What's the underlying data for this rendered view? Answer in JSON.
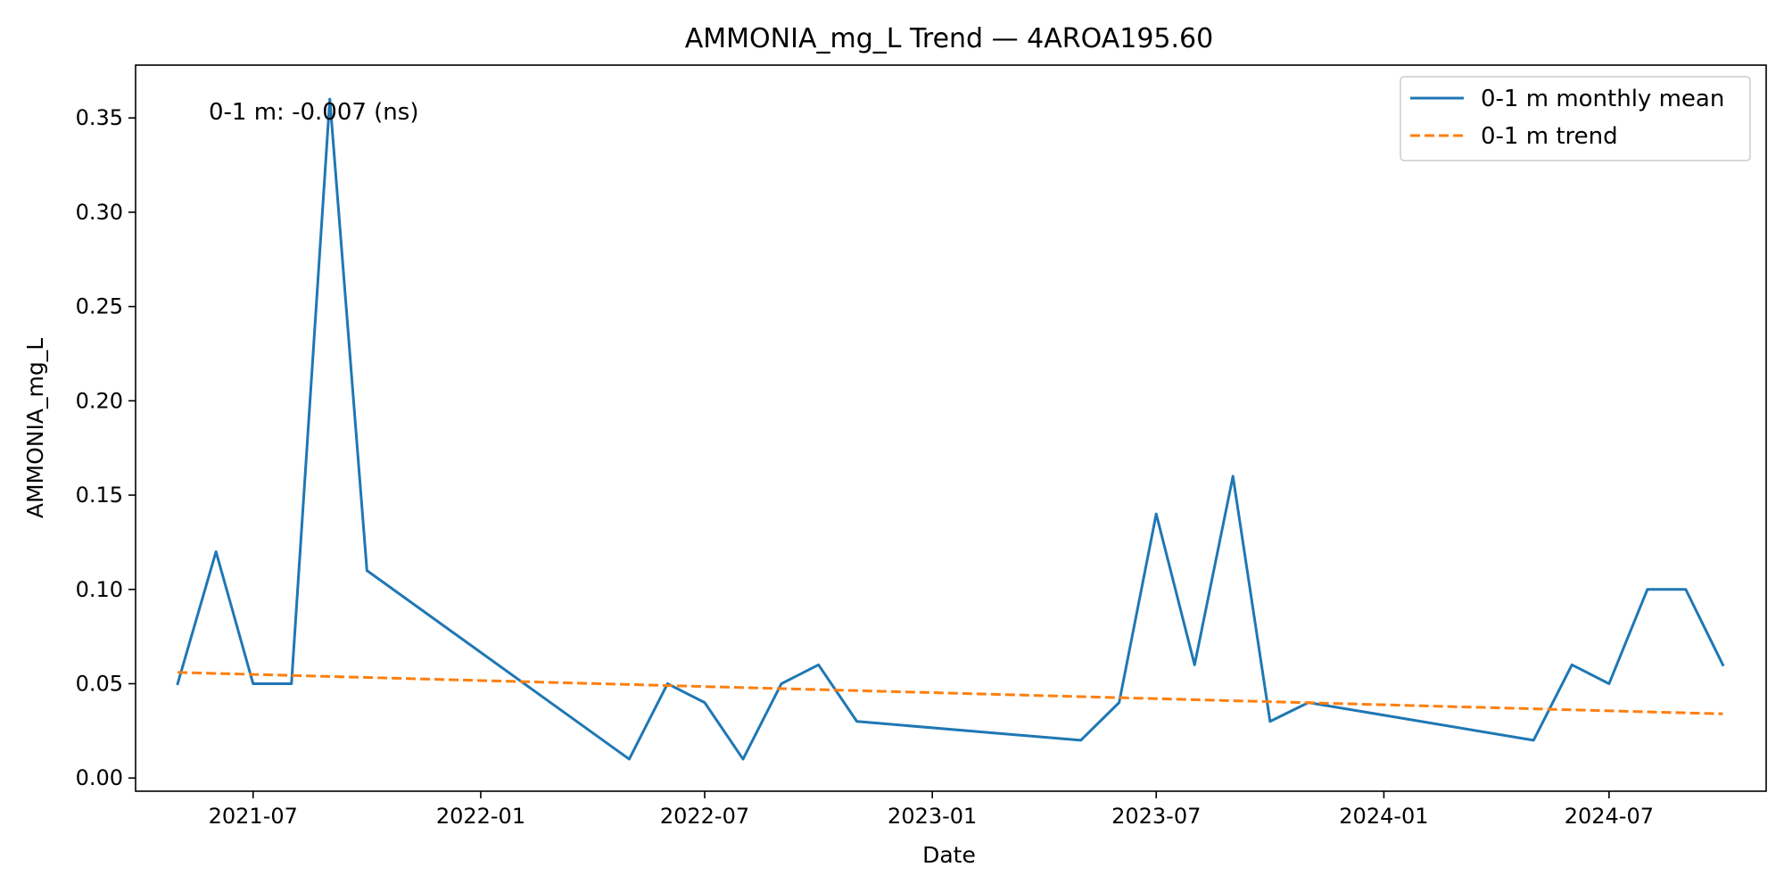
{
  "chart_data": {
    "type": "line",
    "title": "AMMONIA_mg_L Trend — 4AROA195.60",
    "xlabel": "Date",
    "ylabel": "AMMONIA_mg_L",
    "x_type": "date",
    "xlim": [
      "2021-03-28",
      "2024-11-05"
    ],
    "ylim": [
      -0.007,
      0.378
    ],
    "x_ticks": [
      "2021-07",
      "2022-01",
      "2022-07",
      "2023-01",
      "2023-07",
      "2024-01",
      "2024-07"
    ],
    "y_ticks": [
      0.0,
      0.05,
      0.1,
      0.15,
      0.2,
      0.25,
      0.3,
      0.35
    ],
    "grid": false,
    "legend_position": "top-right",
    "annotation": "0-1 m: -0.007 (ns)",
    "series": [
      {
        "name": "0-1 m monthly mean",
        "style": "solid",
        "color": "#1f77b4",
        "points": [
          [
            "2021-05-01",
            0.05
          ],
          [
            "2021-06-01",
            0.12
          ],
          [
            "2021-07-01",
            0.05
          ],
          [
            "2021-08-01",
            0.05
          ],
          [
            "2021-09-01",
            0.36
          ],
          [
            "2021-10-01",
            0.11
          ],
          [
            "2022-05-01",
            0.01
          ],
          [
            "2022-06-01",
            0.05
          ],
          [
            "2022-07-01",
            0.04
          ],
          [
            "2022-08-01",
            0.01
          ],
          [
            "2022-09-01",
            0.05
          ],
          [
            "2022-10-01",
            0.06
          ],
          [
            "2022-11-01",
            0.03
          ],
          [
            "2023-05-01",
            0.02
          ],
          [
            "2023-06-01",
            0.04
          ],
          [
            "2023-07-01",
            0.14
          ],
          [
            "2023-08-01",
            0.06
          ],
          [
            "2023-09-01",
            0.16
          ],
          [
            "2023-10-01",
            0.03
          ],
          [
            "2023-11-01",
            0.04
          ],
          [
            "2024-05-01",
            0.02
          ],
          [
            "2024-06-01",
            0.06
          ],
          [
            "2024-07-01",
            0.05
          ],
          [
            "2024-08-01",
            0.1
          ],
          [
            "2024-09-01",
            0.1
          ],
          [
            "2024-10-01",
            0.06
          ]
        ]
      },
      {
        "name": "0-1 m trend",
        "style": "dashed",
        "color": "#ff7f0e",
        "points": [
          [
            "2021-05-01",
            0.056
          ],
          [
            "2024-10-01",
            0.034
          ]
        ]
      }
    ]
  }
}
